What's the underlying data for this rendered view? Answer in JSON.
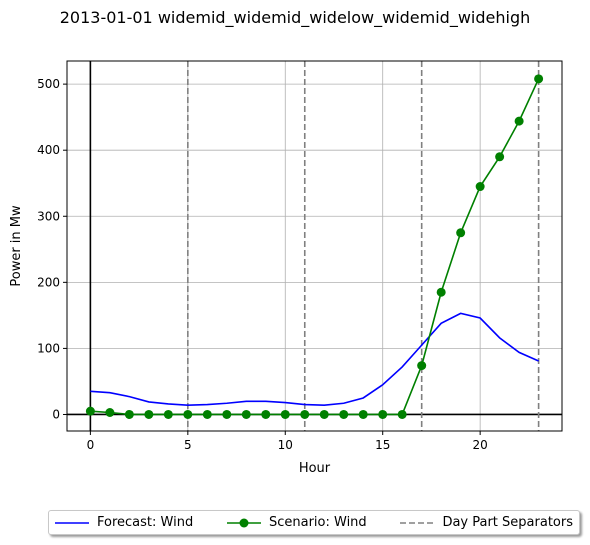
{
  "chart_data": {
    "type": "line",
    "title": "2013-01-01 widemid_widemid_widelow_widemid_widehigh",
    "xlabel": "Hour",
    "ylabel": "Power in Mw",
    "xlim": [
      -1.2,
      24.2
    ],
    "ylim": [
      -25,
      535
    ],
    "x_ticks": [
      0,
      5,
      10,
      15,
      20
    ],
    "y_ticks": [
      0,
      100,
      200,
      300,
      400,
      500
    ],
    "grid": true,
    "legend_position": "bottom-center",
    "x": [
      0,
      1,
      2,
      3,
      4,
      5,
      6,
      7,
      8,
      9,
      10,
      11,
      12,
      13,
      14,
      15,
      16,
      17,
      18,
      19,
      20,
      21,
      22,
      23
    ],
    "series": [
      {
        "name": "Forecast: Wind",
        "color": "#0000ff",
        "marker": "none",
        "values": [
          35,
          33,
          27,
          19,
          16,
          14,
          15,
          17,
          20,
          20,
          18,
          15,
          14,
          17,
          25,
          45,
          72,
          105,
          138,
          153,
          146,
          116,
          94,
          81
        ]
      },
      {
        "name": "Scenario: Wind",
        "color": "#008000",
        "marker": "circle",
        "values": [
          5,
          3,
          0,
          0,
          0,
          0,
          0,
          0,
          0,
          0,
          0,
          0,
          0,
          0,
          0,
          0,
          0,
          74,
          185,
          275,
          345,
          390,
          444,
          508
        ]
      }
    ],
    "separators": {
      "name": "Day Part Separators",
      "color": "#808080",
      "style": "dashed",
      "x": [
        5,
        11,
        17,
        23
      ]
    }
  }
}
